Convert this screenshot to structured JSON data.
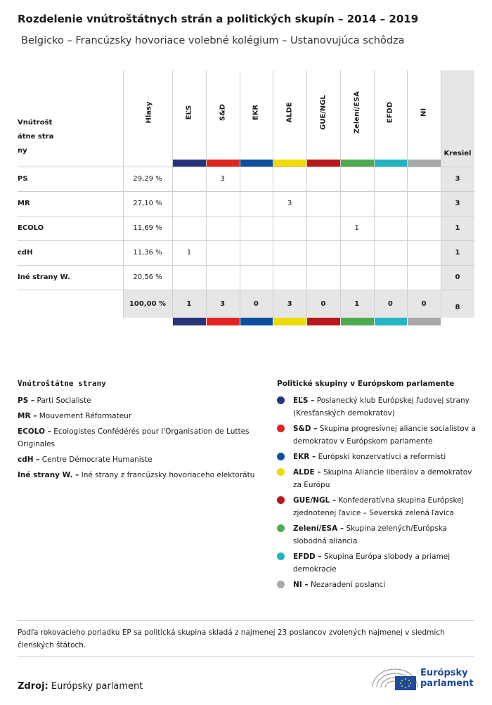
{
  "header": {
    "title": "Rozdelenie vnútroštátnych strán a politických skupín – 2014 – 2019",
    "subtitle": "Belgicko – Francúzsky hovoriace volebné kolégium – Ustanovujúca schôdza"
  },
  "table": {
    "corner": "Vnútroštátne strany",
    "votes_header": "Hlasy",
    "seats_header": "Kresiel",
    "groups": [
      {
        "name": "EĽS",
        "color": "#27347a"
      },
      {
        "name": "S&D",
        "color": "#e2231f"
      },
      {
        "name": "EKR",
        "color": "#0b4f9e"
      },
      {
        "name": "ALDE",
        "color": "#f0db00"
      },
      {
        "name": "GUE/NGL",
        "color": "#b8171d"
      },
      {
        "name": "Zelení/ESA",
        "color": "#4fab4f"
      },
      {
        "name": "EFDD",
        "color": "#22b5c1"
      },
      {
        "name": "NI",
        "color": "#a9a9a9"
      }
    ],
    "rows": [
      {
        "party": "PS",
        "votes": "29,29 %",
        "by_group": [
          null,
          3,
          null,
          null,
          null,
          null,
          null,
          null
        ],
        "seats": 3
      },
      {
        "party": "MR",
        "votes": "27,10 %",
        "by_group": [
          null,
          null,
          null,
          3,
          null,
          null,
          null,
          null
        ],
        "seats": 3
      },
      {
        "party": "ECOLO",
        "votes": "11,69 %",
        "by_group": [
          null,
          null,
          null,
          null,
          null,
          1,
          null,
          null
        ],
        "seats": 1
      },
      {
        "party": "cdH",
        "votes": "11,36 %",
        "by_group": [
          1,
          null,
          null,
          null,
          null,
          null,
          null,
          null
        ],
        "seats": 1
      },
      {
        "party": "Iné strany W.",
        "votes": "20,56 %",
        "by_group": [
          null,
          null,
          null,
          null,
          null,
          null,
          null,
          null
        ],
        "seats": 0
      }
    ],
    "totals": {
      "votes": "100,00 %",
      "by_group": [
        1,
        3,
        0,
        3,
        0,
        1,
        0,
        0
      ],
      "seats": 8
    }
  },
  "national_legend": {
    "title": "Vnútroštátne strany",
    "items": [
      {
        "abbr": "PS –",
        "name": "Parti Socialiste"
      },
      {
        "abbr": "MR –",
        "name": "Mouvement Réformateur"
      },
      {
        "abbr": "ECOLO –",
        "name": "Ecologistes Confédérés pour l'Organisation de Luttes Originales"
      },
      {
        "abbr": "cdH –",
        "name": "Centre Démocrate Humaniste"
      },
      {
        "abbr": "Iné strany W. –",
        "name": "Iné strany z francúzsky hovoriaceho elektorátu"
      }
    ]
  },
  "group_legend": {
    "title": "Politické skupiny v Európskom parlamente",
    "items": [
      {
        "abbr": "EĽS –",
        "name": "Poslanecký klub Európskej ľudovej strany (Kresťanských demokratov)"
      },
      {
        "abbr": "S&D –",
        "name": "Skupina progresívnej aliancie socialistov a demokratov v Európskom parlamente"
      },
      {
        "abbr": "EKR –",
        "name": "Európski konzervatívci a reformisti"
      },
      {
        "abbr": "ALDE –",
        "name": "Skupina Aliancie liberálov a demokratov za Európu"
      },
      {
        "abbr": "GUE/NGL –",
        "name": "Konfederatívna skupina Európskej zjednotenej ľavice – Severská zelená ľavica"
      },
      {
        "abbr": "Zelení/ESA –",
        "name": "Skupina zelených/Európska slobodná aliancia"
      },
      {
        "abbr": "EFDD –",
        "name": "Skupina Európa slobody a priamej demokracie"
      },
      {
        "abbr": "NI –",
        "name": "Nezaradení poslanci"
      }
    ]
  },
  "footnote": "Podľa rokovacieho poriadku EP sa politická skupina skladá z najmenej 23 poslancov zvolených najmenej v siedmich členských štátoch.",
  "source": {
    "label": "Zdroj:",
    "text": "Európsky parlament"
  },
  "logo": {
    "text": "Európsky parlament"
  }
}
